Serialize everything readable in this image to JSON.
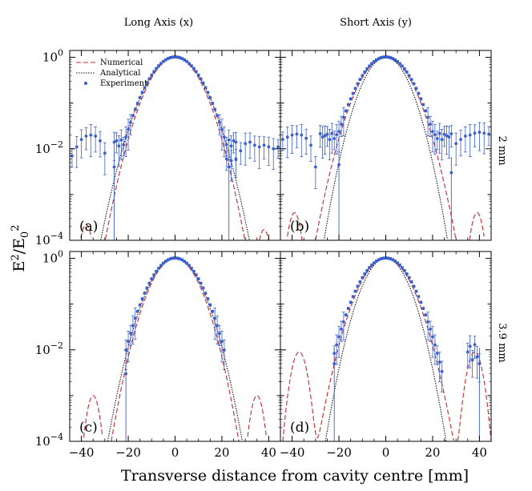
{
  "chart_data": {
    "type": "line",
    "layout": "2x2 grid",
    "xlabel": "Transverse distance from cavity centre [mm]",
    "ylabel_main": "E",
    "ylabel_sup1": "2",
    "ylabel_sep": "/E",
    "ylabel_sub": "0",
    "ylabel_sup2": "2",
    "column_titles": [
      "Long Axis (x)",
      "Short Axis (y)"
    ],
    "row_titles": [
      "2 mm",
      "3.9 mm"
    ],
    "xlim": [
      -45,
      45
    ],
    "ylim_log10": [
      -4,
      0.15
    ],
    "x_tick_labels": [
      "−40",
      "−20",
      "0",
      "20",
      "40"
    ],
    "x_tick_values": [
      -40,
      -20,
      0,
      20,
      40
    ],
    "y_tick_base": "10",
    "y_tick_exponents": [
      "0",
      "−2",
      "−4"
    ],
    "legend": [
      "Numerical",
      "Analytical",
      "Experiment"
    ],
    "colors": {
      "numerical": "#c62828",
      "analytical": "#111111",
      "experiment": "#3a5fcd",
      "axes": "#000000"
    },
    "panels": [
      {
        "label": "(a)",
        "numerical_waist": 13.9,
        "numerical_sidelobes": [
          {
            "center": -38,
            "peak": 0.00022,
            "width": 5
          },
          {
            "center": 38,
            "peak": 0.00017,
            "width": 5
          }
        ],
        "analytical_waist": 14.8,
        "experiment_waist": 14.8,
        "experiment_range": [
          -26,
          26
        ],
        "experiment_floor": 0.013,
        "experiment_tail_x": [
          -44,
          -42,
          -40,
          -38,
          -36,
          -34,
          -32,
          -30,
          22,
          24,
          26,
          28,
          30,
          32,
          34,
          36,
          38,
          40,
          42,
          44
        ],
        "experiment_tail_y": [
          0.007,
          0.011,
          0.016,
          0.019,
          0.02,
          0.019,
          0.015,
          0.008,
          0.006,
          0.0055,
          0.006,
          0.009,
          0.013,
          0.014,
          0.012,
          0.011,
          0.012,
          0.011,
          0.01,
          0.011
        ]
      },
      {
        "label": "(b)",
        "numerical_waist": 14.0,
        "numerical_sidelobes": [
          {
            "center": -39,
            "peak": 0.0004,
            "width": 5
          },
          {
            "center": 39,
            "peak": 0.0004,
            "width": 5
          }
        ],
        "analytical_waist": 12.3,
        "experiment_waist": 14.6,
        "experiment_range": [
          -28,
          28
        ],
        "experiment_floor": 0.018,
        "experiment_tail_x": [
          -44,
          -42,
          -40,
          -38,
          -36,
          -34,
          -32,
          -30,
          30,
          32,
          34,
          36,
          38,
          40,
          42,
          44
        ],
        "experiment_tail_y": [
          0.016,
          0.018,
          0.02,
          0.021,
          0.02,
          0.017,
          0.012,
          0.004,
          0.013,
          0.016,
          0.019,
          0.02,
          0.022,
          0.023,
          0.022,
          0.021
        ]
      },
      {
        "label": "(c)",
        "numerical_waist": 12.7,
        "numerical_sidelobes": [
          {
            "center": -35,
            "peak": 0.001,
            "width": 5
          },
          {
            "center": 35,
            "peak": 0.001,
            "width": 5
          }
        ],
        "analytical_waist": 13.4,
        "experiment_waist": 13.8,
        "experiment_range": [
          -21,
          21
        ],
        "experiment_floor": 0,
        "experiment_tail_x": [],
        "experiment_tail_y": []
      },
      {
        "label": "(d)",
        "numerical_waist": 13.5,
        "numerical_sidelobes": [
          {
            "center": -37,
            "peak": 0.009,
            "width": 6
          },
          {
            "center": 38,
            "peak": 0.009,
            "width": 6
          }
        ],
        "analytical_waist": 12.0,
        "experiment_waist": 14.2,
        "experiment_range": [
          -22,
          24
        ],
        "experiment_floor": 0,
        "experiment_tail_x": [
          35,
          36,
          37,
          38,
          39,
          40
        ],
        "experiment_tail_y": [
          0.009,
          0.012,
          0.006,
          0.013,
          0.007,
          0.005
        ]
      }
    ]
  }
}
